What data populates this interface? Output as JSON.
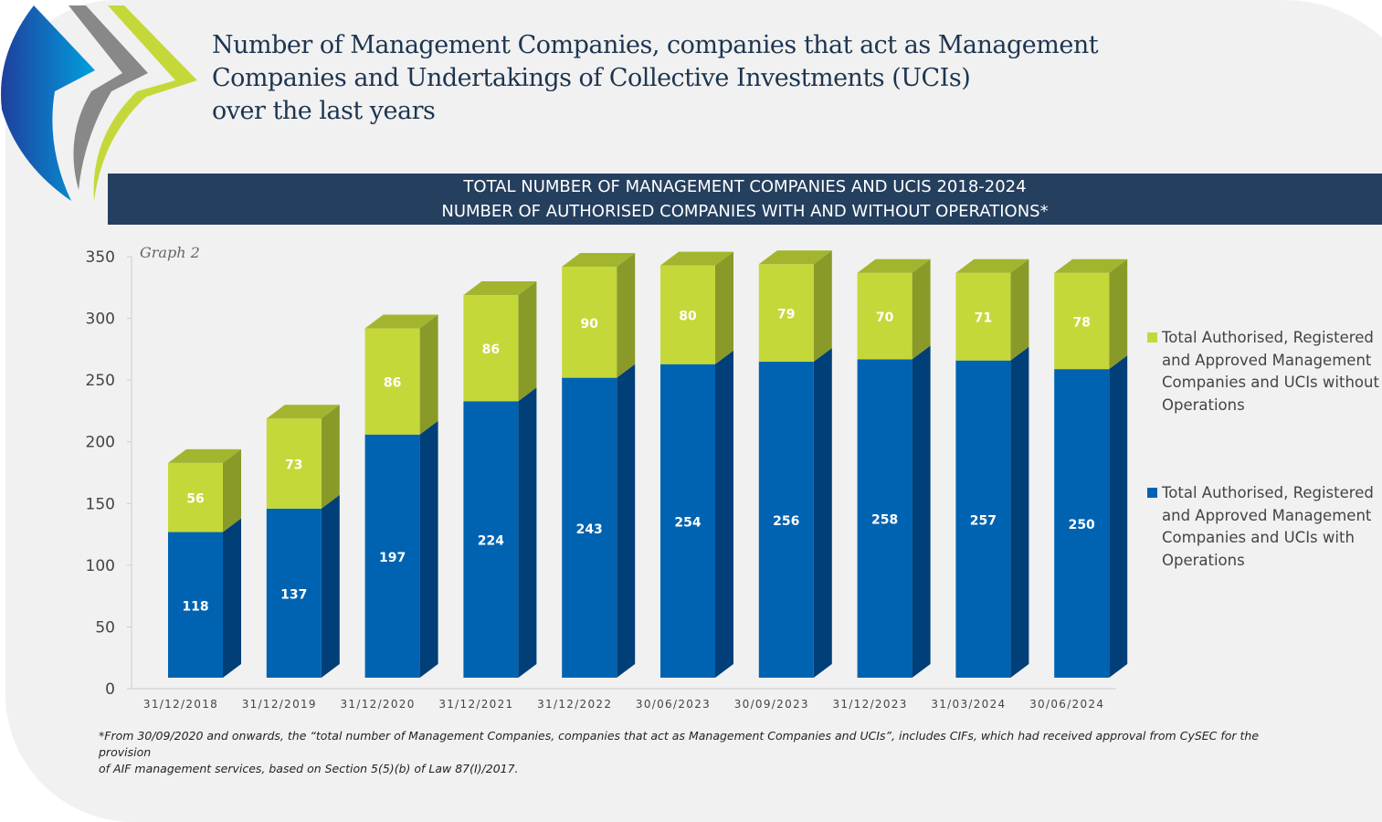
{
  "header": {
    "title_lines": [
      "Number of Management Companies, companies that act as Management",
      "Companies and Undertakings of Collective Investments (UCIs)",
      "over the last years"
    ],
    "logo": "chevron-swoosh-logo"
  },
  "banner": {
    "line1": "TOTAL NUMBER OF MANAGEMENT COMPANIES AND UCIS 2018-2024",
    "line2": "NUMBER OF AUTHORISED COMPANIES WITH AND WITHOUT OPERATIONS*"
  },
  "graph_label": "Graph 2",
  "chart_data": {
    "type": "bar",
    "stacked": true,
    "style": "3d",
    "categories": [
      "31/12/2018",
      "31/12/2019",
      "31/12/2020",
      "31/12/2021",
      "31/12/2022",
      "30/06/2023",
      "30/09/2023",
      "31/12/2023",
      "31/03/2024",
      "30/06/2024"
    ],
    "series": [
      {
        "name": "Total Authorised, Registered and Approved Management Companies and UCIs with Operations",
        "color": "#0063b1",
        "values": [
          118,
          137,
          197,
          224,
          243,
          254,
          256,
          258,
          257,
          250
        ]
      },
      {
        "name": "Total Authorised, Registered and Approved Management Companies and UCIs without Operations",
        "color": "#c5d839",
        "values": [
          56,
          73,
          86,
          86,
          90,
          80,
          79,
          70,
          71,
          78
        ]
      }
    ],
    "ylim": [
      0,
      350
    ],
    "yticks": [
      0,
      50,
      100,
      150,
      200,
      250,
      300,
      350
    ],
    "grid": false,
    "legend_position": "right"
  },
  "legend": {
    "without": "Total Authorised, Registered and Approved Management Companies and UCIs without Operations",
    "with": "Total Authorised, Registered and Approved Management Companies and UCIs with Operations"
  },
  "footnote": {
    "line1": "*From 30/09/2020 and onwards, the “total number of Management Companies, companies that act as Management Companies and UCIs”, includes CIFs, which had received approval from CySEC for the provision",
    "line2": "of AIF management services, based on Section 5(5)(b) of Law 87(I)/2017."
  }
}
